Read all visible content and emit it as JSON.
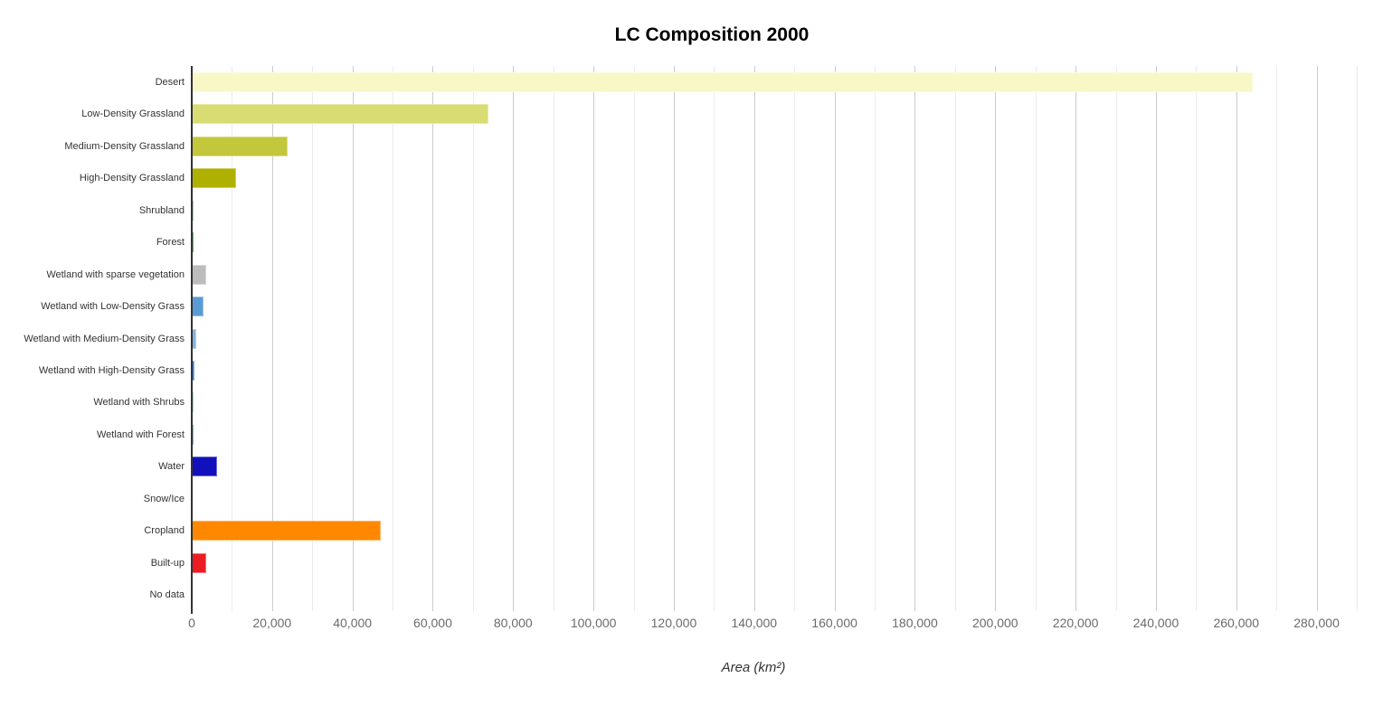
{
  "chart_data": {
    "type": "bar",
    "orientation": "horizontal",
    "title": "LC Composition 2000",
    "xlabel": "Area (km²)",
    "legend": "none",
    "grid": true,
    "xlim": [
      0,
      290000
    ],
    "x_tick_step": 20000,
    "x_minor_step": 10000,
    "x_tick_max": 280000,
    "categories": [
      "Desert",
      "Low-Density Grassland",
      "Medium-Density Grassland",
      "High-Density Grassland",
      "Shrubland",
      "Forest",
      "Wetland with sparse vegetation",
      "Wetland with Low-Density Grass",
      "Wetland with Medium-Density Grass",
      "Wetland with High-Density Grass",
      "Wetland with Shrubs",
      "Wetland with Forest",
      "Water",
      "Snow/Ice",
      "Cropland",
      "Built-up",
      "No data"
    ],
    "values": [
      264000,
      73800,
      23800,
      11000,
      500,
      550,
      3500,
      2900,
      1100,
      700,
      500,
      450,
      6200,
      0,
      47000,
      3700,
      0
    ],
    "colors": [
      "#F8F8C6",
      "#D9DC72",
      "#C3C73B",
      "#AFB100",
      "#79AC78",
      "#157815",
      "#BCBCBC",
      "#5B9BD5",
      "#85B3DF",
      "#2F7FE5",
      "#6FC5BE",
      "#45818E",
      "#1111BB",
      "#FFFFFF",
      "#FF8800",
      "#ED1C24",
      "#000000"
    ],
    "axis_colors": {
      "baseline": "#333333",
      "major_gridline": "#cccccc",
      "minor_gridline": "#ebebeb",
      "tick_label": "#6b6b6b",
      "category_label": "#333333"
    }
  }
}
